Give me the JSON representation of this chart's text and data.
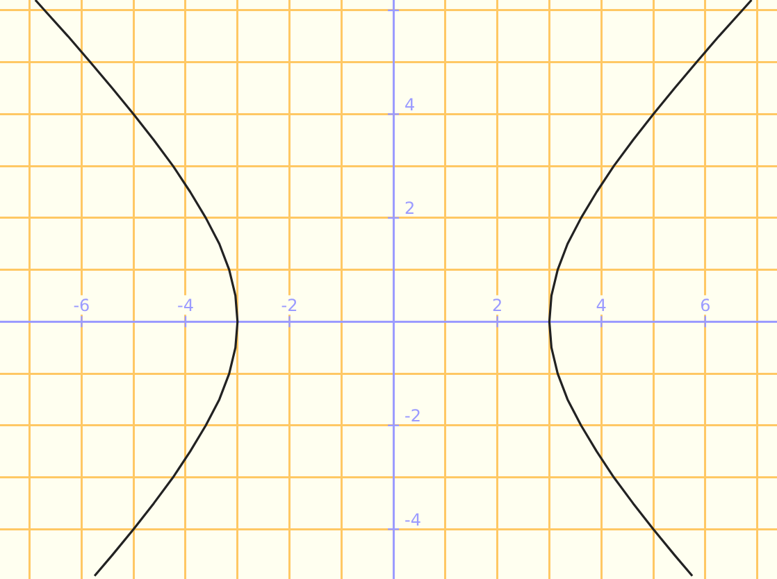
{
  "chart_data": {
    "type": "line",
    "xlim": [
      -7.57,
      7.38
    ],
    "ylim": [
      -4.96,
      6.2
    ],
    "xticks": [
      {
        "value": -7,
        "label": null
      },
      -6,
      {
        "value": -5,
        "label": null
      },
      -4,
      {
        "value": -3,
        "label": null
      },
      -2,
      {
        "value": -1,
        "label": null
      },
      {
        "value": 0,
        "label": null
      },
      {
        "value": 1,
        "label": null
      },
      2,
      {
        "value": 3,
        "label": null
      },
      4,
      {
        "value": 5,
        "label": null
      },
      6,
      {
        "value": 7,
        "label": null
      }
    ],
    "yticks": [
      -4,
      {
        "value": -3,
        "label": null
      },
      -2,
      {
        "value": -1,
        "label": null
      },
      {
        "value": 0,
        "label": null
      },
      {
        "value": 1,
        "label": null
      },
      2,
      {
        "value": 3,
        "label": null
      },
      4,
      {
        "value": 5,
        "label": null
      },
      {
        "value": 6,
        "label": null
      }
    ],
    "grid": true,
    "marker": "none",
    "line_style": "solid",
    "series": [
      {
        "color": "#222222",
        "x": [
          5.75,
          5.41,
          5,
          4.61,
          4.24,
          3.91,
          3.61,
          3.35,
          3.16,
          3.04,
          3,
          3.04,
          3.16,
          3.35,
          3.61,
          3.91,
          4.24,
          4.61,
          5,
          5.41,
          5.83,
          6.26,
          6.71,
          6.89
        ],
        "values": [
          -4.9,
          -4.5,
          -4,
          -3.5,
          -3,
          -2.5,
          -2,
          -1.5,
          -1,
          -0.5,
          0,
          0.5,
          1,
          1.5,
          2,
          2.5,
          3,
          3.5,
          4,
          4.5,
          5,
          5.5,
          6,
          6.2
        ]
      },
      {
        "color": "#222222",
        "x": [
          -5.75,
          -5.41,
          -5,
          -4.61,
          -4.24,
          -3.91,
          -3.61,
          -3.35,
          -3.16,
          -3.04,
          -3,
          -3.04,
          -3.16,
          -3.35,
          -3.61,
          -3.91,
          -4.24,
          -4.61,
          -5,
          -5.41,
          -5.83,
          -6.26,
          -6.71,
          -6.89
        ],
        "values": [
          -4.9,
          -4.5,
          -4,
          -3.5,
          -3,
          -2.5,
          -2,
          -1.5,
          -1,
          -0.5,
          0,
          0.5,
          1,
          1.5,
          2,
          2.5,
          3,
          3.5,
          4,
          4.5,
          5,
          5.5,
          6,
          6.2
        ]
      }
    ]
  }
}
